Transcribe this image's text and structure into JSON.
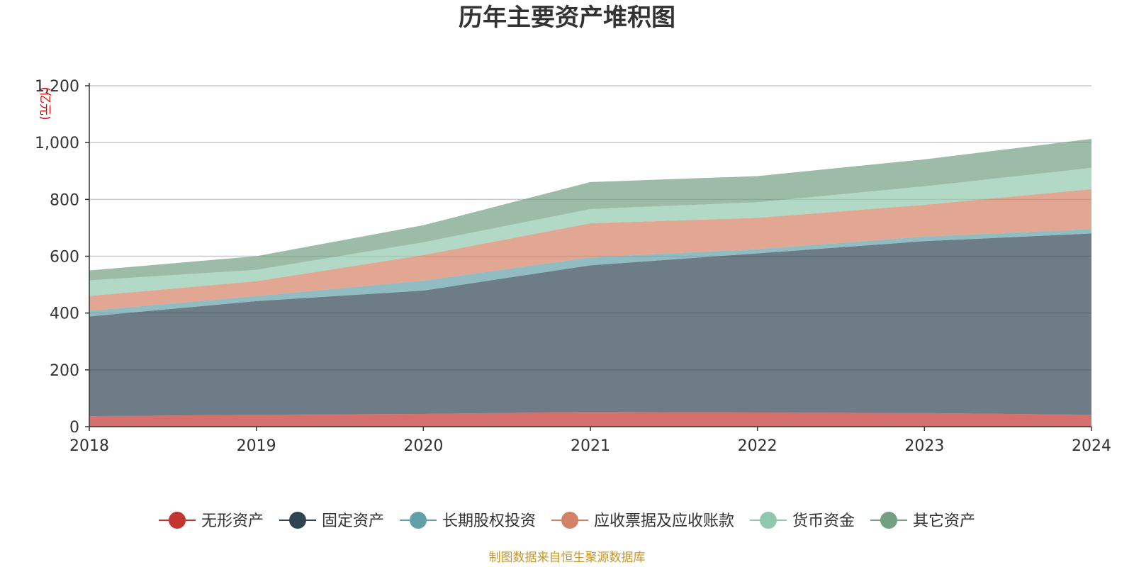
{
  "chart_data": {
    "type": "area",
    "stacked": true,
    "title": "历年主要资产堆积图",
    "y_unit": "(亿元)",
    "x": [
      "2018",
      "2019",
      "2020",
      "2021",
      "2022",
      "2023",
      "2024"
    ],
    "ylim": [
      0,
      1200
    ],
    "yticks": [
      0,
      200,
      400,
      600,
      800,
      1000,
      1200
    ],
    "ytick_labels": [
      "0",
      "200",
      "400",
      "600",
      "800",
      "1,000",
      "1,200"
    ],
    "grid": true,
    "legend_position": "bottom",
    "series": [
      {
        "name": "无形资产",
        "color": "#c23531",
        "values": [
          37,
          42,
          45,
          52,
          50,
          48,
          42
        ]
      },
      {
        "name": "固定资产",
        "color": "#2f4554",
        "values": [
          351,
          400,
          434,
          516,
          560,
          605,
          638
        ]
      },
      {
        "name": "长期股权投资",
        "color": "#61a0a8",
        "values": [
          20,
          18,
          35,
          28,
          15,
          16,
          16
        ]
      },
      {
        "name": "应收票据及应收账款",
        "color": "#d48265",
        "values": [
          52,
          52,
          90,
          120,
          110,
          112,
          140
        ]
      },
      {
        "name": "货币资金",
        "color": "#91c7ae",
        "values": [
          55,
          40,
          45,
          50,
          55,
          65,
          75
        ]
      },
      {
        "name": "其它资产",
        "color": "#749f83",
        "values": [
          35,
          48,
          60,
          95,
          92,
          95,
          102
        ]
      }
    ],
    "source": "制图数据来自恒生聚源数据库"
  }
}
